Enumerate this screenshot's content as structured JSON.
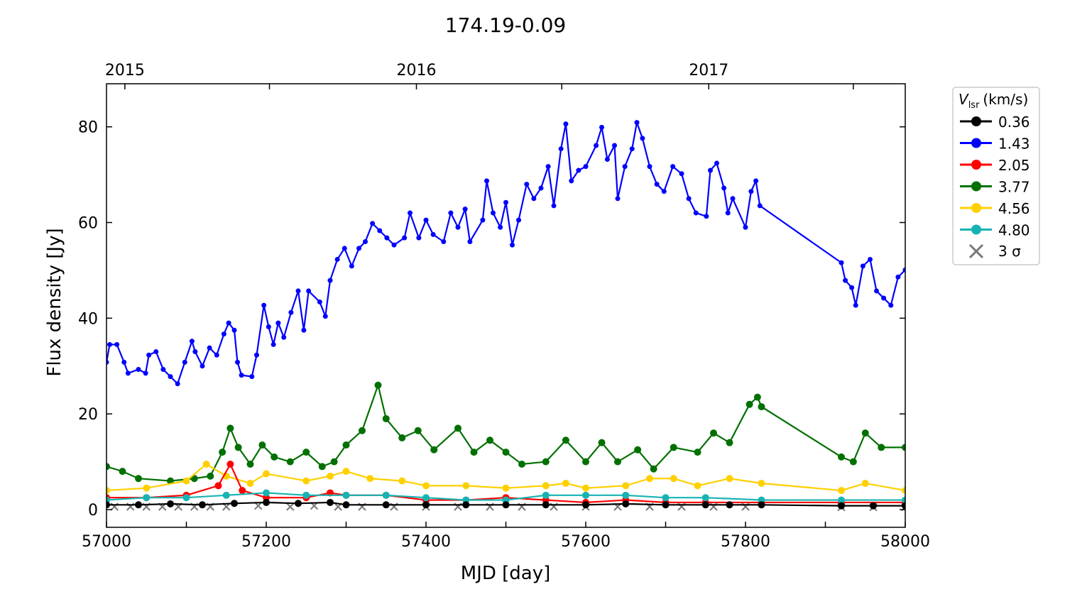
{
  "chart_data": {
    "type": "line",
    "title": "174.19-0.09",
    "xlabel": "MJD [day]",
    "ylabel": "Flux density [Jy]",
    "xlim": [
      57000,
      58000
    ],
    "ylim": [
      -3.7,
      89
    ],
    "xticks": [
      57000,
      57200,
      57400,
      57600,
      57800,
      58000
    ],
    "xticks_minor": [
      57100,
      57300,
      57500,
      57700,
      57900
    ],
    "yticks": [
      0,
      20,
      40,
      60,
      80
    ],
    "top_axis": {
      "ticks": [
        {
          "label": "2015",
          "mjd": 57023
        },
        {
          "label": "2016",
          "mjd": 57388
        },
        {
          "label": "2017",
          "mjd": 57754
        }
      ],
      "minor_mjd": [
        57204,
        57570,
        57935
      ]
    },
    "legend": {
      "title": "V",
      "title_sub": "lsr",
      "title_unit": "(km/s)",
      "placement": "outside-right-top",
      "sigma_label": "3 σ"
    },
    "series": [
      {
        "name": "0.36",
        "color": "#000000",
        "x": [
          57000,
          57040,
          57080,
          57120,
          57160,
          57200,
          57240,
          57280,
          57300,
          57350,
          57400,
          57450,
          57500,
          57550,
          57600,
          57650,
          57700,
          57750,
          57780,
          57820,
          57920,
          57960,
          58000
        ],
        "y": [
          1,
          1,
          1.2,
          1,
          1.3,
          1.5,
          1.3,
          1.5,
          1,
          1,
          1,
          1,
          1,
          1,
          1,
          1.2,
          1,
          1,
          1,
          1,
          0.8,
          0.8,
          0.8
        ]
      },
      {
        "name": "1.43",
        "color": "#0000ff",
        "x": [
          57000,
          57004,
          57013,
          57022,
          57027,
          57040,
          57049,
          57053,
          57062,
          57071,
          57080,
          57089,
          57098,
          57107,
          57111,
          57120,
          57129,
          57138,
          57147,
          57153,
          57160,
          57164,
          57169,
          57182,
          57188,
          57197,
          57203,
          57209,
          57215,
          57222,
          57231,
          57240,
          57247,
          57253,
          57267,
          57274,
          57280,
          57289,
          57298,
          57307,
          57316,
          57324,
          57333,
          57342,
          57351,
          57360,
          57373,
          57380,
          57391,
          57400,
          57409,
          57422,
          57431,
          57440,
          57449,
          57455,
          57471,
          57476,
          57484,
          57493,
          57500,
          57508,
          57516,
          57526,
          57535,
          57544,
          57553,
          57560,
          57569,
          57575,
          57582,
          57591,
          57600,
          57613,
          57620,
          57627,
          57636,
          57640,
          57649,
          57658,
          57664,
          57671,
          57680,
          57689,
          57698,
          57709,
          57720,
          57729,
          57738,
          57751,
          57756,
          57764,
          57773,
          57778,
          57784,
          57800,
          57807,
          57813,
          57818,
          57920,
          57925,
          57933,
          57938,
          57947,
          57956,
          57964,
          57973,
          57982,
          57991,
          58000
        ],
        "y": [
          30.8,
          34.5,
          34.5,
          30.8,
          28.5,
          29.3,
          28.5,
          32.3,
          33,
          29.3,
          27.8,
          26.3,
          30.8,
          35.2,
          33,
          30,
          33.8,
          32.3,
          36.7,
          39,
          37.5,
          30.8,
          28.1,
          27.8,
          32.3,
          42.7,
          38.2,
          34.5,
          39,
          36,
          41.2,
          45.7,
          37.5,
          45.7,
          43.4,
          40.4,
          47.9,
          52.3,
          54.6,
          50.9,
          54.6,
          56,
          59.8,
          58.3,
          56.8,
          55.3,
          56.8,
          62,
          56.8,
          60.5,
          57.5,
          56,
          62,
          59,
          62.8,
          56,
          60.5,
          68.7,
          62,
          59,
          64.2,
          55.3,
          60.5,
          68,
          65,
          67.2,
          71.7,
          63.5,
          75.4,
          80.6,
          68.7,
          70.9,
          71.7,
          76.1,
          79.9,
          73.2,
          76.1,
          65,
          71.7,
          75.4,
          80.9,
          77.6,
          71.7,
          68,
          66.5,
          71.7,
          70.2,
          65,
          62,
          61.3,
          70.9,
          72.4,
          67.2,
          62,
          65,
          59,
          66.5,
          68.7,
          63.5,
          51.6,
          47.9,
          46.4,
          42.7,
          50.9,
          52.3,
          45.7,
          44.2,
          42.7,
          48.6,
          50.1
        ]
      },
      {
        "name": "2.05",
        "color": "#ff0000",
        "x": [
          57000,
          57050,
          57100,
          57140,
          57155,
          57170,
          57200,
          57250,
          57280,
          57300,
          57350,
          57400,
          57450,
          57500,
          57550,
          57600,
          57650,
          57700,
          57750,
          57820,
          57920,
          58000
        ],
        "y": [
          2.5,
          2.5,
          3,
          5,
          9.5,
          4,
          2.5,
          2.5,
          3.5,
          3,
          3,
          2,
          2,
          2.5,
          2,
          1.5,
          2,
          1.5,
          1.5,
          1.5,
          1.5,
          1.5
        ]
      },
      {
        "name": "3.77",
        "color": "#007000",
        "x": [
          57000,
          57020,
          57040,
          57080,
          57110,
          57130,
          57145,
          57155,
          57165,
          57180,
          57195,
          57210,
          57230,
          57250,
          57270,
          57285,
          57300,
          57320,
          57340,
          57350,
          57370,
          57390,
          57410,
          57440,
          57460,
          57480,
          57500,
          57520,
          57550,
          57575,
          57600,
          57620,
          57640,
          57665,
          57685,
          57710,
          57740,
          57760,
          57780,
          57805,
          57815,
          57820,
          57920,
          57935,
          57950,
          57970,
          58000
        ],
        "y": [
          9,
          8,
          6.5,
          6,
          6.5,
          7,
          12,
          17,
          13,
          9.5,
          13.5,
          11,
          10,
          12,
          9,
          10,
          13.5,
          16.5,
          26,
          19,
          15,
          16.5,
          12.5,
          17,
          12,
          14.5,
          12,
          9.5,
          10,
          14.5,
          10,
          14,
          10,
          12.5,
          8.5,
          13,
          12,
          16,
          14,
          22,
          23.5,
          21.5,
          11,
          10,
          16,
          13,
          13
        ]
      },
      {
        "name": "4.56",
        "color": "#ffd000",
        "x": [
          57000,
          57050,
          57100,
          57125,
          57150,
          57180,
          57200,
          57250,
          57280,
          57300,
          57330,
          57370,
          57400,
          57450,
          57500,
          57550,
          57575,
          57600,
          57650,
          57680,
          57710,
          57740,
          57780,
          57820,
          57920,
          57950,
          58000
        ],
        "y": [
          4,
          4.5,
          6,
          9.5,
          7,
          5.5,
          7.5,
          6,
          7,
          8,
          6.5,
          6,
          5,
          5,
          4.5,
          5,
          5.5,
          4.5,
          5,
          6.5,
          6.5,
          5,
          6.5,
          5.5,
          4,
          5.5,
          4
        ]
      },
      {
        "name": "4.80",
        "color": "#17b3b3",
        "x": [
          57000,
          57050,
          57100,
          57150,
          57200,
          57250,
          57300,
          57350,
          57400,
          57450,
          57500,
          57550,
          57600,
          57650,
          57700,
          57750,
          57820,
          57920,
          58000
        ],
        "y": [
          2,
          2.5,
          2.5,
          3,
          3.5,
          3,
          3,
          3,
          2.5,
          2,
          2,
          3,
          3,
          3,
          2.5,
          2.5,
          2,
          2,
          2
        ]
      }
    ],
    "sigma_points": {
      "color": "#777777",
      "x": [
        57010,
        57030,
        57050,
        57070,
        57090,
        57110,
        57130,
        57150,
        57190,
        57230,
        57260,
        57290,
        57320,
        57360,
        57400,
        57440,
        57480,
        57520,
        57560,
        57600,
        57640,
        57680,
        57720,
        57760,
        57800,
        57920,
        57960,
        58000
      ],
      "y": [
        0.6,
        0.6,
        0.6,
        0.6,
        0.6,
        0.6,
        0.6,
        0.6,
        0.8,
        0.6,
        0.8,
        0.6,
        0.6,
        0.6,
        0.6,
        0.6,
        0.6,
        0.6,
        0.6,
        0.6,
        0.6,
        0.6,
        0.6,
        0.6,
        0.6,
        0.5,
        0.5,
        0.5
      ]
    }
  }
}
